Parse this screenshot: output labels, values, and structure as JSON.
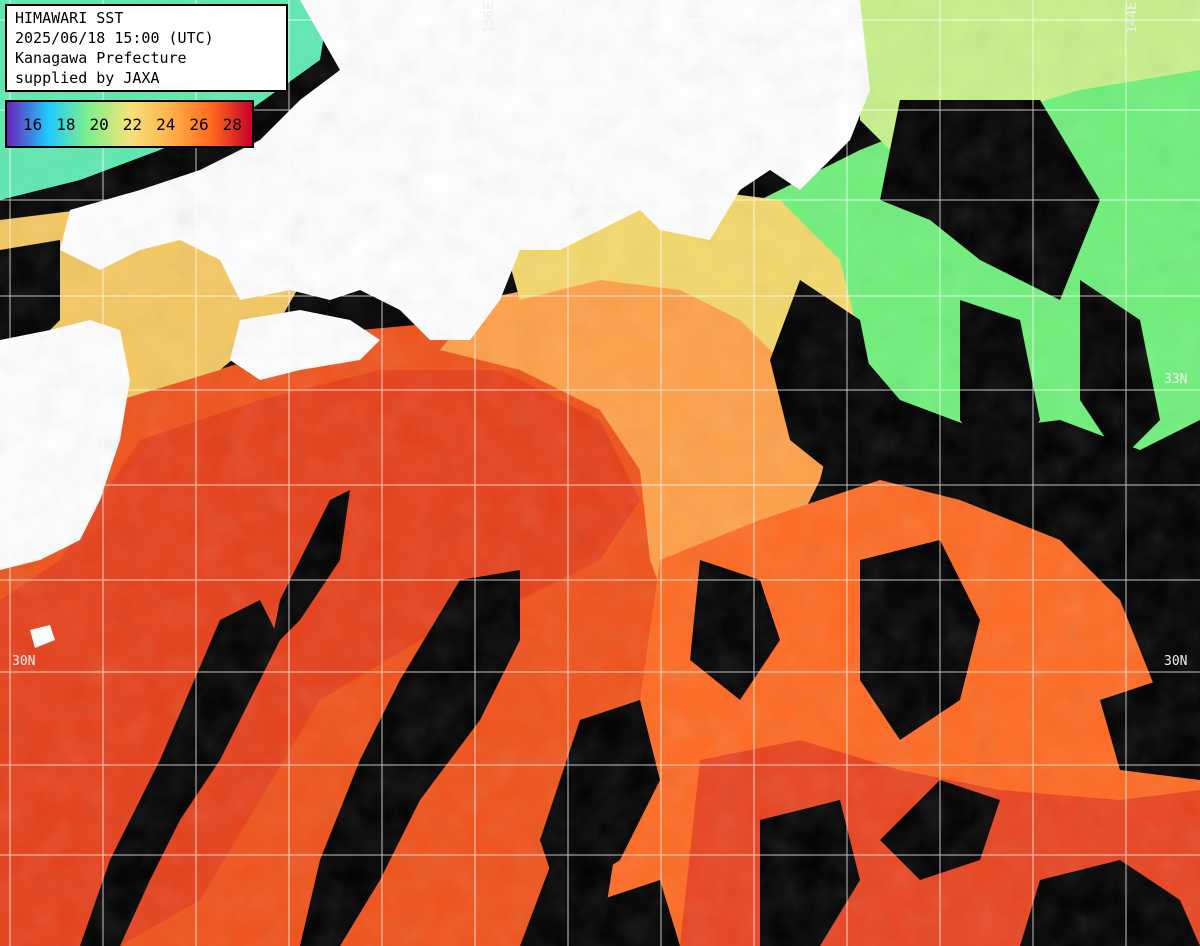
{
  "info": {
    "line1": "HIMAWARI SST",
    "line2": "2025/06/18 15:00 (UTC)",
    "line3": "Kanagawa Prefecture",
    "line4": "supplied by JAXA"
  },
  "legend": {
    "ticks": [
      "16",
      "18",
      "20",
      "22",
      "24",
      "26",
      "28"
    ],
    "colors": [
      "#6a1fb8",
      "#1fc9ff",
      "#7ff08a",
      "#f4e37a",
      "#ffb14a",
      "#ff6a1c",
      "#c8002a"
    ]
  },
  "grid": {
    "lat_labels": {
      "lat33_right": "33N",
      "lat30_left": "30N",
      "lat30_right": "30N"
    },
    "lon_labels": {
      "lon136": "136E",
      "lon144": "144E"
    }
  },
  "colors": {
    "land": "#ffffff",
    "cloud": "#000000",
    "grid": "#ffffff"
  }
}
